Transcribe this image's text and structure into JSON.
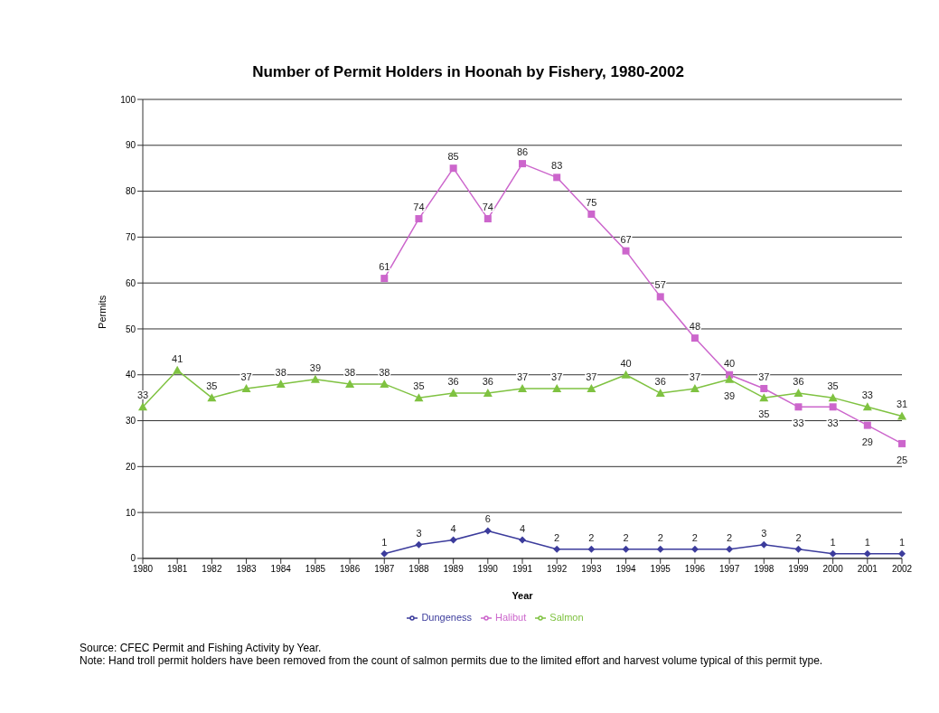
{
  "chart_data": {
    "type": "line",
    "title": "Number of Permit Holders in Hoonah by Fishery, 1980-2002",
    "xlabel": "Year",
    "ylabel": "Permits",
    "categories": [
      "1980",
      "1981",
      "1982",
      "1983",
      "1984",
      "1985",
      "1986",
      "1987",
      "1988",
      "1989",
      "1990",
      "1991",
      "1992",
      "1993",
      "1994",
      "1995",
      "1996",
      "1997",
      "1998",
      "1999",
      "2000",
      "2001",
      "2002"
    ],
    "series": [
      {
        "name": "Dungeness",
        "color": "#3c3c9c",
        "marker": "diamond",
        "values": [
          null,
          null,
          null,
          null,
          null,
          null,
          null,
          1,
          3,
          4,
          6,
          4,
          2,
          2,
          2,
          2,
          2,
          2,
          3,
          2,
          1,
          1,
          1
        ]
      },
      {
        "name": "Halibut",
        "color": "#cc66cc",
        "marker": "square",
        "values": [
          null,
          null,
          null,
          null,
          null,
          null,
          null,
          61,
          74,
          85,
          74,
          86,
          83,
          75,
          67,
          57,
          48,
          40,
          37,
          33,
          33,
          29,
          25
        ]
      },
      {
        "name": "Salmon",
        "color": "#7fc241",
        "marker": "triangle",
        "values": [
          33,
          41,
          35,
          37,
          38,
          39,
          38,
          38,
          35,
          36,
          36,
          37,
          37,
          37,
          40,
          36,
          37,
          39,
          35,
          36,
          35,
          33,
          31
        ]
      }
    ],
    "ylim": [
      0,
      100
    ],
    "yticks": [
      0,
      10,
      20,
      30,
      40,
      50,
      60,
      70,
      80,
      90,
      100
    ],
    "grid": "y",
    "legend": "bottom",
    "data_labels": true,
    "annotations": [
      "Source: CFEC Permit and Fishing Activity by Year.",
      "Note: Hand troll permit holders have been removed from the count of salmon permits due to the limited effort and harvest volume typical of this permit type."
    ]
  }
}
